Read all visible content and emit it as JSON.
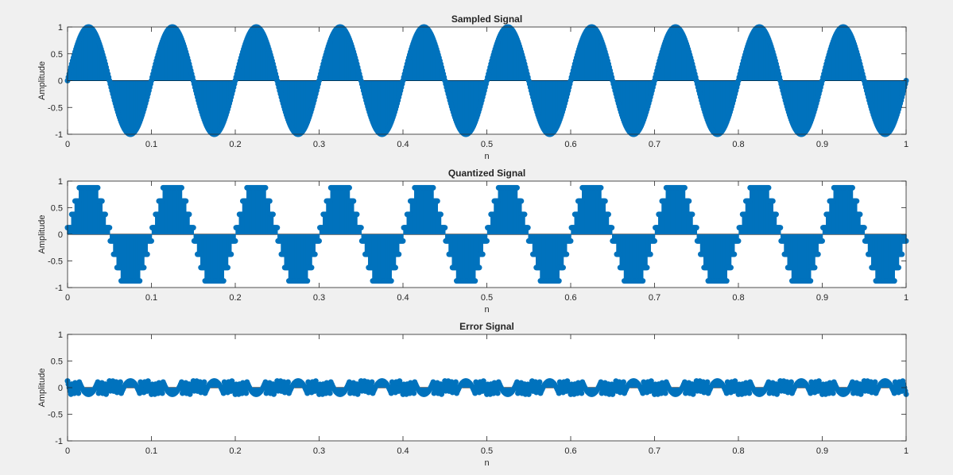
{
  "figure": {
    "background": "#f0f0f0",
    "axes_background": "#ffffff"
  },
  "chart_data": [
    {
      "type": "stem",
      "title": "Sampled Signal",
      "xlabel": "n",
      "ylabel": "Amplitude",
      "xlim": [
        0,
        1
      ],
      "ylim": [
        -1,
        1
      ],
      "xticks": [
        0,
        0.1,
        0.2,
        0.3,
        0.4,
        0.5,
        0.6,
        0.7,
        0.8,
        0.9,
        1
      ],
      "xtick_labels": [
        "0",
        "0.1",
        "0.2",
        "0.3",
        "0.4",
        "0.5",
        "0.6",
        "0.7",
        "0.8",
        "0.9",
        "1"
      ],
      "yticks": [
        -1,
        -0.5,
        0,
        0.5,
        1
      ],
      "ytick_labels": [
        "-1",
        "-0.5",
        "0",
        "0.5",
        "1"
      ],
      "color": "#0072bd",
      "grid": false,
      "series": [
        {
          "signal": "sine",
          "frequency": 10,
          "amplitude": 1,
          "samples": 1001,
          "x_range": [
            0,
            1
          ]
        }
      ]
    },
    {
      "type": "stem",
      "title": "Quantized Signal",
      "xlabel": "n",
      "ylabel": "Amplitude",
      "xlim": [
        0,
        1
      ],
      "ylim": [
        -1,
        1
      ],
      "xticks": [
        0,
        0.1,
        0.2,
        0.3,
        0.4,
        0.5,
        0.6,
        0.7,
        0.8,
        0.9,
        1
      ],
      "xtick_labels": [
        "0",
        "0.1",
        "0.2",
        "0.3",
        "0.4",
        "0.5",
        "0.6",
        "0.7",
        "0.8",
        "0.9",
        "1"
      ],
      "yticks": [
        -1,
        -0.5,
        0,
        0.5,
        1
      ],
      "ytick_labels": [
        "-1",
        "-0.5",
        "0",
        "0.5",
        "1"
      ],
      "color": "#0072bd",
      "grid": false,
      "series": [
        {
          "signal": "quantized-sine",
          "frequency": 10,
          "samples": 1001,
          "x_range": [
            0,
            1
          ],
          "levels": [
            -0.875,
            -0.625,
            -0.375,
            -0.125,
            0.125,
            0.375,
            0.625,
            0.875
          ]
        }
      ]
    },
    {
      "type": "stem",
      "title": "Error Signal",
      "xlabel": "n",
      "ylabel": "Amplitude",
      "xlim": [
        0,
        1
      ],
      "ylim": [
        -1,
        1
      ],
      "xticks": [
        0,
        0.1,
        0.2,
        0.3,
        0.4,
        0.5,
        0.6,
        0.7,
        0.8,
        0.9,
        1
      ],
      "xtick_labels": [
        "0",
        "0.1",
        "0.2",
        "0.3",
        "0.4",
        "0.5",
        "0.6",
        "0.7",
        "0.8",
        "0.9",
        "1"
      ],
      "yticks": [
        -1,
        -0.5,
        0,
        0.5,
        1
      ],
      "ytick_labels": [
        "-1",
        "-0.5",
        "0",
        "0.5",
        "1"
      ],
      "color": "#0072bd",
      "grid": false,
      "series": [
        {
          "signal": "quantization-error",
          "frequency": 10,
          "samples": 1001,
          "x_range": [
            0,
            1
          ],
          "definition": "quantized minus sampled"
        }
      ]
    }
  ]
}
